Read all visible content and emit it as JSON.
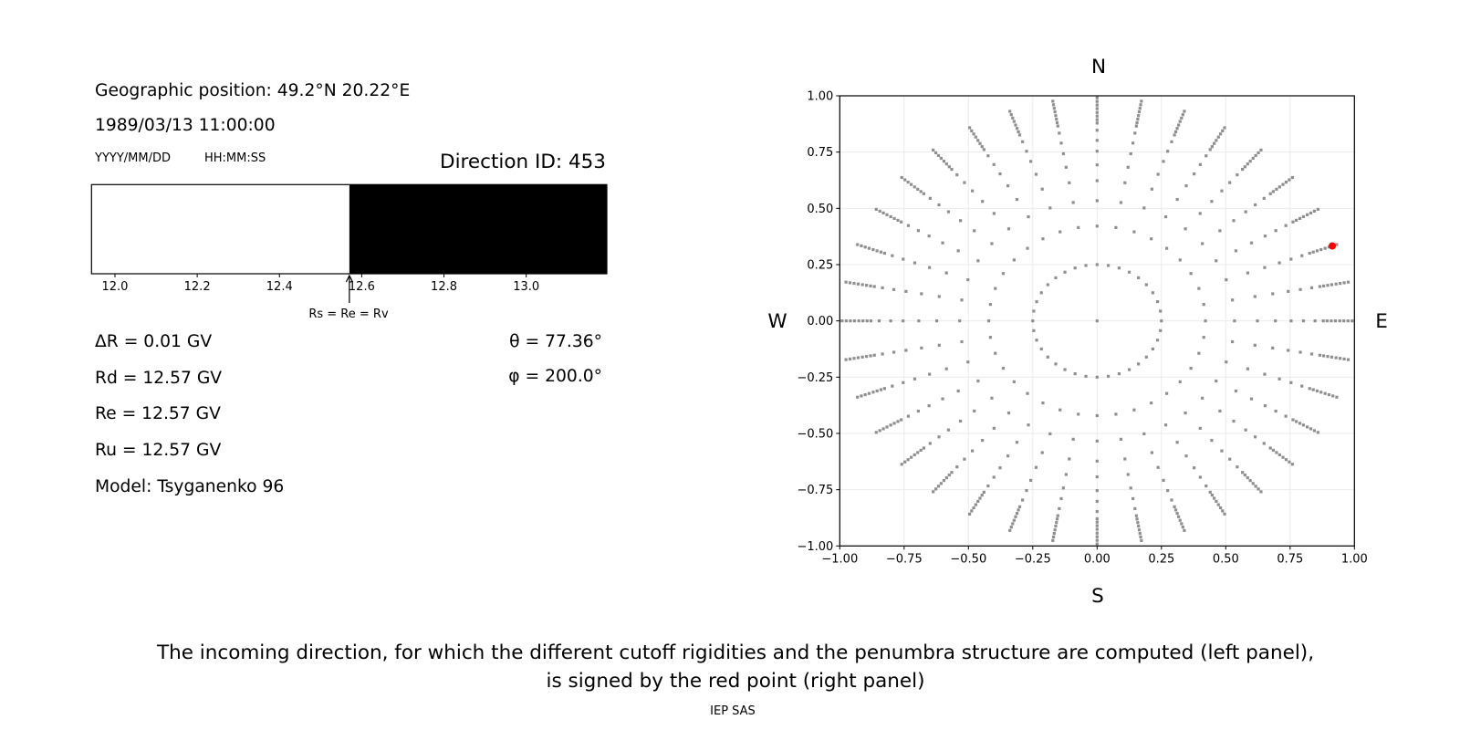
{
  "left_panel": {
    "geo_position": "Geographic position: 49.2°N 20.22°E",
    "datetime": "1989/03/13 11:00:00",
    "date_format": "YYYY/MM/DD",
    "time_format": "HH:MM:SS",
    "direction_id": "Direction ID: 453",
    "delta_r": "ΔR = 0.01 GV",
    "rd": "Rd = 12.57 GV",
    "re": "Re = 12.57 GV",
    "ru": "Ru = 12.57 GV",
    "model": "Model: Tsyganenko 96",
    "theta": "θ = 77.36°",
    "phi": "φ = 200.0°",
    "annotation": "Rs = Re = Rv"
  },
  "caption": {
    "line1": "The incoming direction, for which the different cutoff rigidities and the penumbra structure are computed (left panel),",
    "line2": "is signed by the red point (right panel)",
    "credit": "IEP SAS"
  },
  "chart_data": [
    {
      "type": "bar",
      "orientation": "horizontal-span",
      "xlim": [
        11.943,
        13.196
      ],
      "xticks": [
        "12.0",
        "12.2",
        "12.4",
        "12.6",
        "12.8",
        "13.0"
      ],
      "segments": [
        {
          "from": 11.943,
          "to": 12.57,
          "color": "#ffffff"
        },
        {
          "from": 12.57,
          "to": 13.196,
          "color": "#000000"
        }
      ],
      "annotation": {
        "text": "Rs = Re = Rv",
        "x": 12.57
      }
    },
    {
      "type": "scatter",
      "xlim": [
        -1,
        1
      ],
      "ylim": [
        -1,
        1
      ],
      "xticks": [
        "−1.00",
        "−0.75",
        "−0.50",
        "−0.25",
        "0.00",
        "0.25",
        "0.50",
        "0.75",
        "1.00"
      ],
      "yticks": [
        "1.00",
        "0.75",
        "0.50",
        "0.25",
        "0.00",
        "−0.25",
        "−0.50",
        "−0.75",
        "−1.00"
      ],
      "grid": true,
      "compass": {
        "top": "N",
        "bottom": "S",
        "left": "W",
        "right": "E"
      },
      "grid_points": {
        "color": "#8f8f8f",
        "center": [
          0,
          0
        ],
        "azimuths_deg_step": 10,
        "radii": [
          0.25,
          0.421,
          0.534,
          0.623,
          0.693,
          0.754,
          0.802,
          0.847,
          0.879,
          0.894,
          0.91,
          0.926,
          0.943,
          0.959,
          0.975,
          0.991
        ]
      },
      "highlight": {
        "x": 0.914,
        "y": 0.333,
        "color": "#ff0000"
      }
    }
  ]
}
